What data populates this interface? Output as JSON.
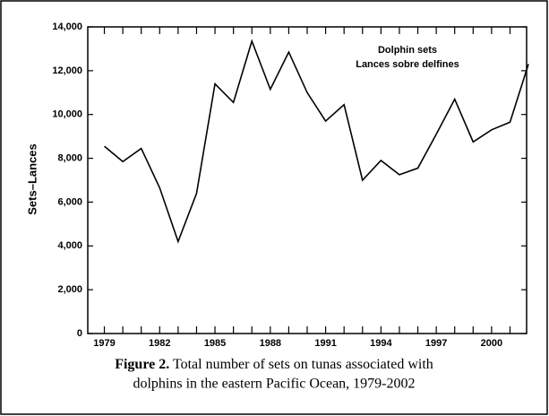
{
  "chart_data": {
    "type": "line",
    "x": [
      1979,
      1980,
      1981,
      1982,
      1983,
      1984,
      1985,
      1986,
      1987,
      1988,
      1989,
      1990,
      1991,
      1992,
      1993,
      1994,
      1995,
      1996,
      1997,
      1998,
      1999,
      2000,
      2001,
      2002
    ],
    "series": [
      {
        "name": null,
        "color": "#000000",
        "values": [
          8550,
          7850,
          8450,
          6650,
          4200,
          6400,
          11400,
          10550,
          13350,
          11150,
          12850,
          11000,
          9700,
          10450,
          7000,
          7900,
          7250,
          7550,
          9100,
          10700,
          8750,
          9300,
          9650,
          12300
        ]
      }
    ],
    "ylabel": "Sets–Lances",
    "annotations": [
      "Dolphin sets",
      "Lances sobre delfines"
    ],
    "xlim": [
      1978.1,
      2001.9
    ],
    "xticks": [
      1979,
      1982,
      1985,
      1988,
      1991,
      1994,
      1997,
      2000
    ],
    "xminorticks": [
      1980,
      1981,
      1983,
      1984,
      1986,
      1987,
      1989,
      1990,
      1992,
      1993,
      1995,
      1996,
      1998,
      1999,
      2001
    ],
    "ylim": [
      0,
      14000
    ],
    "yticks": [
      0,
      {
        "value": 2000,
        "label": "2,000"
      },
      {
        "value": 4000,
        "label": "4,000"
      },
      {
        "value": 6000,
        "label": "6,000"
      },
      {
        "value": 8000,
        "label": "8,000"
      },
      {
        "value": 10000,
        "label": "10,000"
      },
      {
        "value": 12000,
        "label": "12,000"
      },
      {
        "value": 14000,
        "label": "14,000"
      }
    ],
    "grid": false,
    "caption_label": "Figure 2.",
    "caption_lines": [
      "Total number of sets on tunas associated with",
      "dolphins in the eastern Pacific Ocean, 1979-2002"
    ]
  }
}
